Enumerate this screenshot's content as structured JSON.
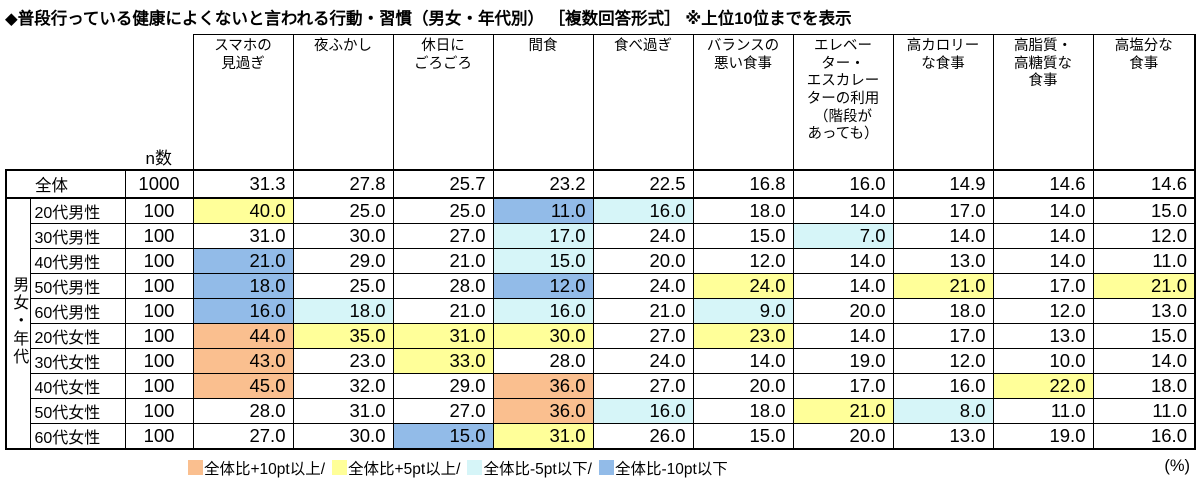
{
  "title": "◆普段行っている健康によくないと言われる行動・習慣（男女・年代別） ［複数回答形式］ ※上位10位までを表示",
  "unit_label": "(%)",
  "colors": {
    "plus10": "#FABF8F",
    "plus5": "#FFFF99",
    "minus5": "#D6F5F8",
    "minus10": "#92BBE8"
  },
  "legend": [
    {
      "level": "plus10",
      "label": "全体比+10pt以上/"
    },
    {
      "level": "plus5",
      "label": "全体比+5pt以上/"
    },
    {
      "level": "minus5",
      "label": "全体比-5pt以下/"
    },
    {
      "level": "minus10",
      "label": "全体比-10pt以下"
    }
  ],
  "table": {
    "n_label": "n数",
    "group_label": "男女・年代",
    "columns": [
      "スマホの\n見過ぎ",
      "夜ふかし",
      "休日に\nごろごろ",
      "間食",
      "食べ過ぎ",
      "バランスの\n悪い食事",
      "エレベー\nター・\nエスカレー\nターの利用\n（階段が\nあっても）",
      "高カロリー\nな食事",
      "高脂質・\n高糖質な\n食事",
      "高塩分な\n食事"
    ],
    "total_row": {
      "label": "全体",
      "n": "1000",
      "values": [
        31.3,
        27.8,
        25.7,
        23.2,
        22.5,
        16.8,
        16.0,
        14.9,
        14.6,
        14.6
      ]
    },
    "rows": [
      {
        "label": "20代男性",
        "n": "100",
        "values": [
          40.0,
          25.0,
          25.0,
          11.0,
          16.0,
          18.0,
          14.0,
          17.0,
          14.0,
          15.0
        ],
        "marks": [
          "plus5",
          "",
          "",
          "minus10",
          "minus5",
          "",
          "",
          "",
          "",
          ""
        ]
      },
      {
        "label": "30代男性",
        "n": "100",
        "values": [
          31.0,
          30.0,
          27.0,
          17.0,
          24.0,
          15.0,
          7.0,
          14.0,
          14.0,
          12.0
        ],
        "marks": [
          "",
          "",
          "",
          "minus5",
          "",
          "",
          "minus5",
          "",
          "",
          ""
        ]
      },
      {
        "label": "40代男性",
        "n": "100",
        "values": [
          21.0,
          29.0,
          21.0,
          15.0,
          20.0,
          12.0,
          14.0,
          13.0,
          14.0,
          11.0
        ],
        "marks": [
          "minus10",
          "",
          "",
          "minus5",
          "",
          "",
          "",
          "",
          "",
          ""
        ]
      },
      {
        "label": "50代男性",
        "n": "100",
        "values": [
          18.0,
          25.0,
          28.0,
          12.0,
          24.0,
          24.0,
          14.0,
          21.0,
          17.0,
          21.0
        ],
        "marks": [
          "minus10",
          "",
          "",
          "minus10",
          "",
          "plus5",
          "",
          "plus5",
          "",
          "plus5"
        ]
      },
      {
        "label": "60代男性",
        "n": "100",
        "values": [
          16.0,
          18.0,
          21.0,
          16.0,
          21.0,
          9.0,
          20.0,
          18.0,
          12.0,
          13.0
        ],
        "marks": [
          "minus10",
          "minus5",
          "",
          "minus5",
          "",
          "minus5",
          "",
          "",
          "",
          ""
        ]
      },
      {
        "label": "20代女性",
        "n": "100",
        "values": [
          44.0,
          35.0,
          31.0,
          30.0,
          27.0,
          23.0,
          14.0,
          17.0,
          13.0,
          15.0
        ],
        "marks": [
          "plus10",
          "plus5",
          "plus5",
          "plus5",
          "",
          "plus5",
          "",
          "",
          "",
          ""
        ]
      },
      {
        "label": "30代女性",
        "n": "100",
        "values": [
          43.0,
          23.0,
          33.0,
          28.0,
          24.0,
          14.0,
          19.0,
          12.0,
          10.0,
          14.0
        ],
        "marks": [
          "plus10",
          "",
          "plus5",
          "",
          "",
          "",
          "",
          "",
          "",
          ""
        ]
      },
      {
        "label": "40代女性",
        "n": "100",
        "values": [
          45.0,
          32.0,
          29.0,
          36.0,
          27.0,
          20.0,
          17.0,
          16.0,
          22.0,
          18.0
        ],
        "marks": [
          "plus10",
          "",
          "",
          "plus10",
          "",
          "",
          "",
          "",
          "plus5",
          ""
        ]
      },
      {
        "label": "50代女性",
        "n": "100",
        "values": [
          28.0,
          31.0,
          27.0,
          36.0,
          16.0,
          18.0,
          21.0,
          8.0,
          11.0,
          11.0
        ],
        "marks": [
          "",
          "",
          "",
          "plus10",
          "minus5",
          "",
          "plus5",
          "minus5",
          "",
          ""
        ]
      },
      {
        "label": "60代女性",
        "n": "100",
        "values": [
          27.0,
          30.0,
          15.0,
          31.0,
          26.0,
          15.0,
          20.0,
          13.0,
          19.0,
          16.0
        ],
        "marks": [
          "",
          "",
          "minus10",
          "plus5",
          "",
          "",
          "",
          "",
          "",
          ""
        ]
      }
    ]
  }
}
